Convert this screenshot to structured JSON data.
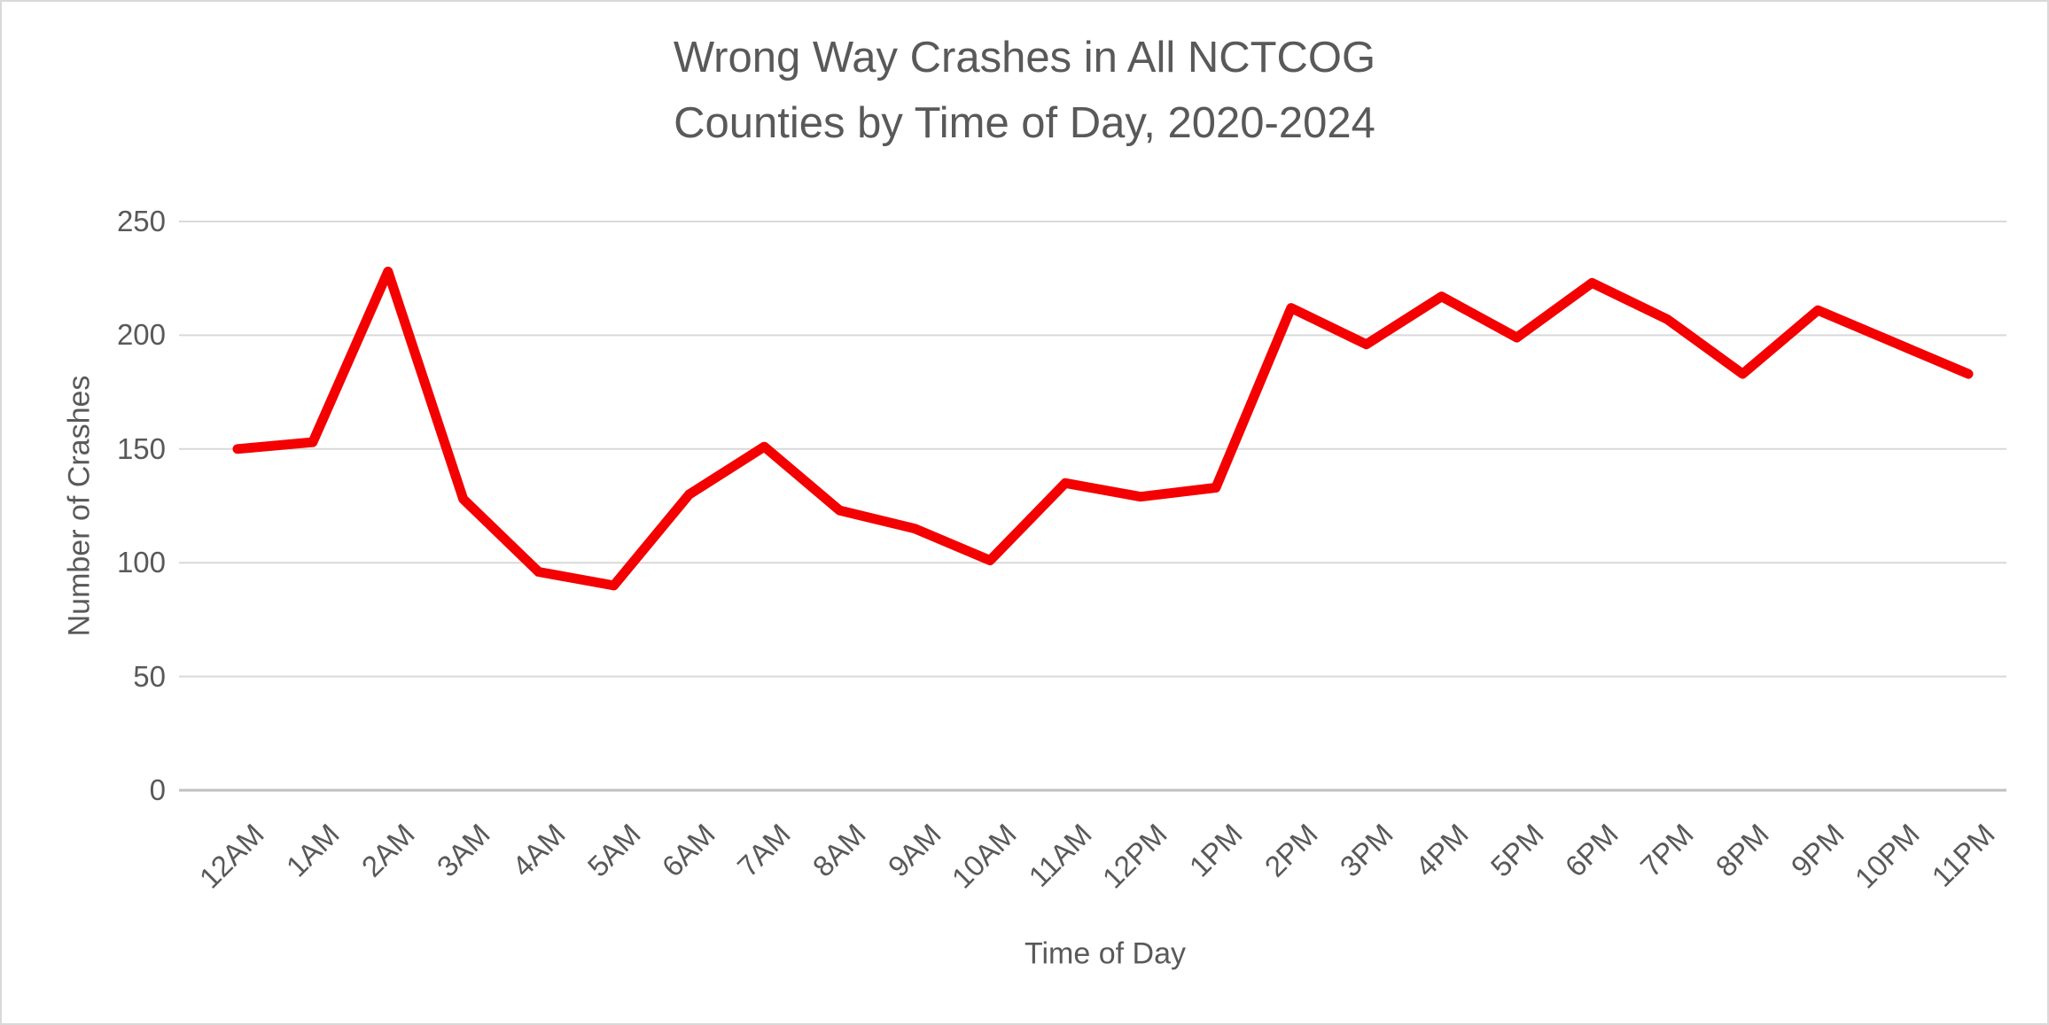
{
  "chart": {
    "title_line1": "Wrong Way Crashes in All NCTCOG",
    "title_line2": "Counties by Time of Day, 2020-2024"
  },
  "chart_data": {
    "type": "line",
    "title": "Wrong Way Crashes in All NCTCOG Counties by Time of Day, 2020-2024",
    "xlabel": "Time of Day",
    "ylabel": "Number of Crashes",
    "categories": [
      "12AM",
      "1AM",
      "2AM",
      "3AM",
      "4AM",
      "5AM",
      "6AM",
      "7AM",
      "8AM",
      "9AM",
      "10AM",
      "11AM",
      "12PM",
      "1PM",
      "2PM",
      "3PM",
      "4PM",
      "5PM",
      "6PM",
      "7PM",
      "8PM",
      "9PM",
      "10PM",
      "11PM"
    ],
    "values": [
      150,
      153,
      228,
      128,
      96,
      90,
      130,
      151,
      123,
      115,
      101,
      135,
      129,
      133,
      212,
      196,
      217,
      199,
      223,
      207,
      183,
      211,
      197,
      183
    ],
    "series_name": "Wrong Way Crashes",
    "ylim": [
      0,
      250
    ],
    "yticks": [
      0,
      50,
      100,
      150,
      200,
      250
    ],
    "grid": true,
    "legend": "none",
    "line_color": "#f40000",
    "text_color": "#595959",
    "gridline_color": "#d9d9d9",
    "axis_line_color": "#c0c0c0"
  }
}
